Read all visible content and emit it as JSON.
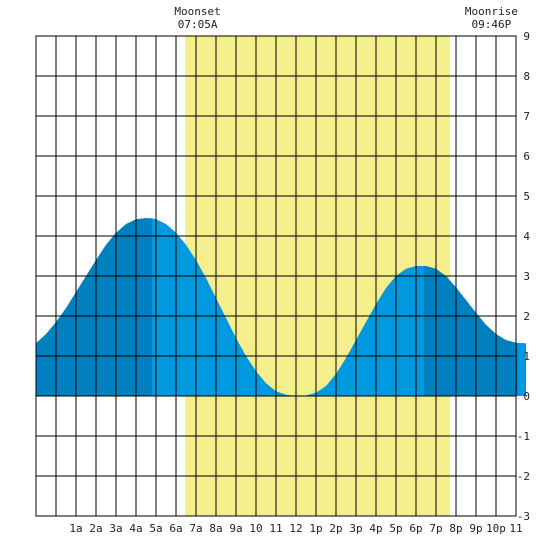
{
  "chart_data": {
    "type": "area",
    "title": "",
    "xlabel": "",
    "ylabel": "",
    "x_unit": "hour of day",
    "xlim": [
      -1,
      23.5
    ],
    "ylim": [
      -3,
      9
    ],
    "x_ticks": [
      {
        "hour": 1,
        "label": "1a"
      },
      {
        "hour": 2,
        "label": "2a"
      },
      {
        "hour": 3,
        "label": "3a"
      },
      {
        "hour": 4,
        "label": "4a"
      },
      {
        "hour": 5,
        "label": "5a"
      },
      {
        "hour": 6,
        "label": "6a"
      },
      {
        "hour": 7,
        "label": "7a"
      },
      {
        "hour": 8,
        "label": "8a"
      },
      {
        "hour": 9,
        "label": "9a"
      },
      {
        "hour": 10,
        "label": "10"
      },
      {
        "hour": 11,
        "label": "11"
      },
      {
        "hour": 12,
        "label": "12"
      },
      {
        "hour": 13,
        "label": "1p"
      },
      {
        "hour": 14,
        "label": "2p"
      },
      {
        "hour": 15,
        "label": "3p"
      },
      {
        "hour": 16,
        "label": "4p"
      },
      {
        "hour": 17,
        "label": "5p"
      },
      {
        "hour": 18,
        "label": "6p"
      },
      {
        "hour": 19,
        "label": "7p"
      },
      {
        "hour": 20,
        "label": "8p"
      },
      {
        "hour": 21,
        "label": "9p"
      },
      {
        "hour": 22,
        "label": "10p"
      },
      {
        "hour": 23,
        "label": "11"
      }
    ],
    "y_ticks": [
      -3,
      -2,
      -1,
      0,
      1,
      2,
      3,
      4,
      5,
      6,
      7,
      8,
      9
    ],
    "grid": true,
    "daylight": {
      "start_hour": 6.45,
      "end_hour": 19.7,
      "color": "#f4ee8c"
    },
    "moon_events": [
      {
        "label": "Moonset",
        "time": "07:05A",
        "hour": 7.08
      },
      {
        "label": "Moonrise",
        "time": "09:46P",
        "hour": 21.77
      }
    ],
    "tide_curve": {
      "color_light": "#0099e0",
      "color_dark": "#0080bf",
      "x": [
        -1.0,
        -0.5,
        0.0,
        0.5,
        1.0,
        1.5,
        2.0,
        2.5,
        3.0,
        3.5,
        4.0,
        4.5,
        4.8,
        5.0,
        5.5,
        6.0,
        6.5,
        7.0,
        7.5,
        8.0,
        8.5,
        9.0,
        9.5,
        10.0,
        10.5,
        11.0,
        11.5,
        12.0,
        12.4,
        13.0,
        13.5,
        14.0,
        14.5,
        15.0,
        15.5,
        16.0,
        16.5,
        17.0,
        17.5,
        18.0,
        18.4,
        18.5,
        19.0,
        19.5,
        20.0,
        20.5,
        21.0,
        21.5,
        22.0,
        22.5,
        23.0,
        23.5
      ],
      "y": [
        1.32,
        1.55,
        1.85,
        2.2,
        2.6,
        3.0,
        3.4,
        3.78,
        4.08,
        4.3,
        4.42,
        4.45,
        4.44,
        4.42,
        4.3,
        4.08,
        3.78,
        3.4,
        2.95,
        2.45,
        1.95,
        1.45,
        1.0,
        0.62,
        0.32,
        0.12,
        0.03,
        0.0,
        0.0,
        0.08,
        0.25,
        0.55,
        0.95,
        1.4,
        1.85,
        2.3,
        2.7,
        3.0,
        3.18,
        3.25,
        3.25,
        3.25,
        3.18,
        3.0,
        2.72,
        2.4,
        2.08,
        1.78,
        1.55,
        1.4,
        1.33,
        1.32
      ],
      "shaded_bands": [
        {
          "start_hour": -1,
          "end_hour": 4.8,
          "shade": "dark"
        },
        {
          "start_hour": 4.8,
          "end_hour": 18.4,
          "shade": "light"
        },
        {
          "start_hour": 18.4,
          "end_hour": 23.1,
          "shade": "dark"
        },
        {
          "start_hour": 23.1,
          "end_hour": 23.5,
          "shade": "light"
        }
      ]
    }
  }
}
